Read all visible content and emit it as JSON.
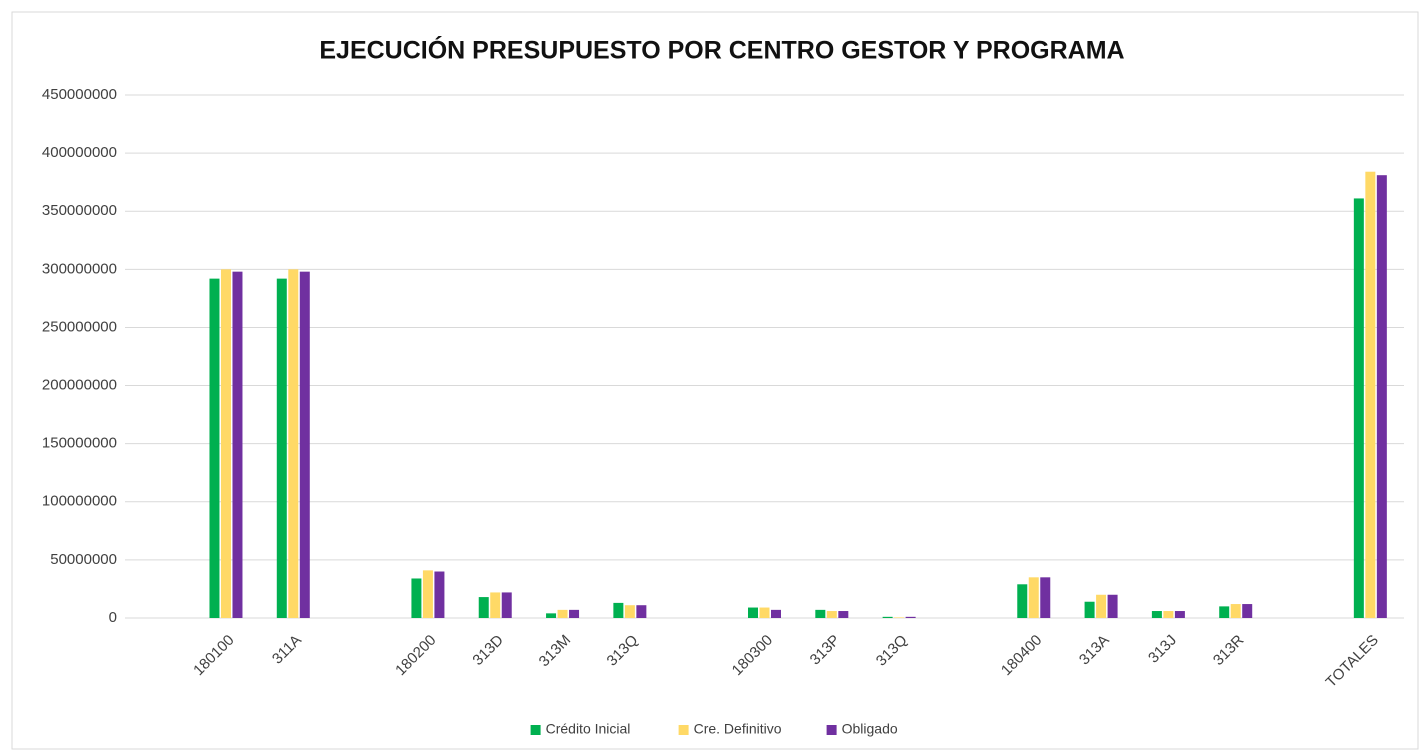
{
  "chart_data": {
    "type": "bar",
    "title": "EJECUCIÓN PRESUPUESTO POR CENTRO GESTOR Y PROGRAMA",
    "categories": [
      null,
      "180100",
      "311A",
      null,
      "180200",
      "313D",
      "313M",
      "313Q",
      null,
      "180300",
      "313P",
      "313Q",
      null,
      "180400",
      "313A",
      "313J",
      "313R",
      null,
      "TOTALES"
    ],
    "series": [
      {
        "name": "Crédito Inicial",
        "color": "#00b050",
        "values": [
          null,
          292000000,
          292000000,
          null,
          34000000,
          18000000,
          4000000,
          13000000,
          null,
          9000000,
          7000000,
          1000000,
          null,
          29000000,
          14000000,
          6000000,
          10000000,
          null,
          361000000
        ]
      },
      {
        "name": "Cre. Definitivo",
        "color": "#ffd966",
        "values": [
          null,
          300000000,
          300000000,
          null,
          41000000,
          22000000,
          7000000,
          11000000,
          null,
          9000000,
          6000000,
          500000,
          null,
          35000000,
          20000000,
          6000000,
          12000000,
          null,
          384000000
        ]
      },
      {
        "name": "Obligado",
        "color": "#7030a0",
        "values": [
          null,
          298000000,
          298000000,
          null,
          40000000,
          22000000,
          7000000,
          11000000,
          null,
          7000000,
          6000000,
          1000000,
          null,
          35000000,
          20000000,
          6000000,
          12000000,
          null,
          381000000
        ]
      }
    ],
    "ylim": [
      0,
      450000000
    ],
    "yticks": [
      0,
      50000000,
      100000000,
      150000000,
      200000000,
      250000000,
      300000000,
      350000000,
      400000000,
      450000000
    ],
    "grid": true,
    "legend": "bottom"
  }
}
